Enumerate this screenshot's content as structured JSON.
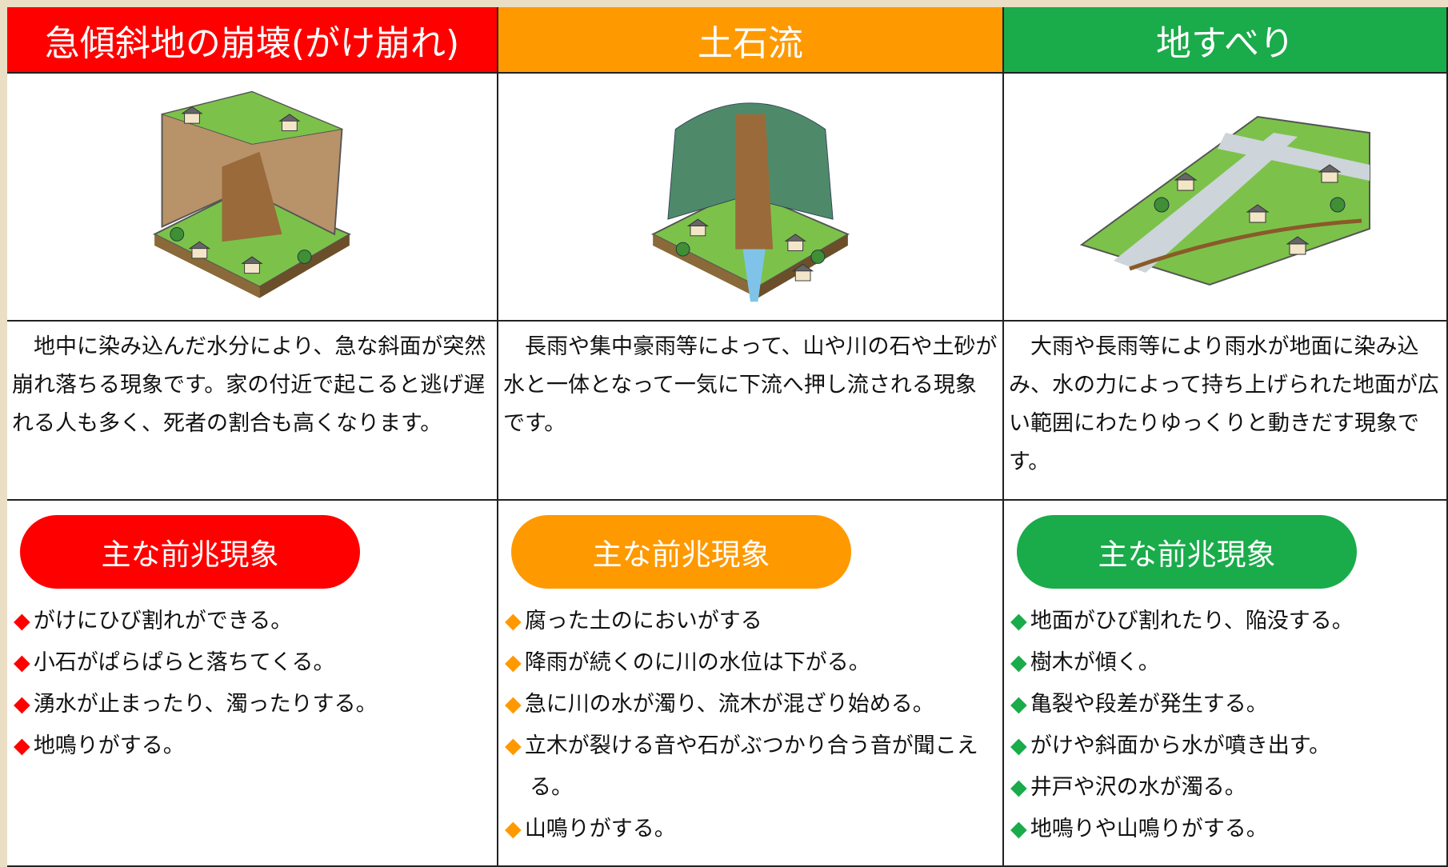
{
  "columns": [
    {
      "title": "急傾斜地の崩壊(がけ崩れ)",
      "description": "地中に染み込んだ水分により、急な斜面が突然崩れ落ちる現象です。家の付近で起こると逃げ遅れる人も多く、死者の割合も高くなります。",
      "precursor_heading": "主な前兆現象",
      "items": [
        "がけにひび割れができる。",
        "小石がぱらぱらと落ちてくる。",
        "湧水が止まったり、濁ったりする。",
        "地鳴りがする。"
      ]
    },
    {
      "title": "土石流",
      "description": "長雨や集中豪雨等によって、山や川の石や土砂が水と一体となって一気に下流へ押し流される現象です。",
      "precursor_heading": "主な前兆現象",
      "items": [
        "腐った土のにおいがする",
        "降雨が続くのに川の水位は下がる。",
        "急に川の水が濁り、流木が混ざり始める。",
        "立木が裂ける音や石がぶつかり合う音が聞こえる。",
        "山鳴りがする。"
      ]
    },
    {
      "title": "地すべり",
      "description": "大雨や長雨等により雨水が地面に染み込み、水の力によって持ち上げられた地面が広い範囲にわたりゆっくりと動きだす現象です。",
      "precursor_heading": "主な前兆現象",
      "items": [
        "地面がひび割れたり、陥没する。",
        "樹木が傾く。",
        "亀裂や段差が発生する。",
        "がけや斜面から水が噴き出す。",
        "井戸や沢の水が濁る。",
        "地鳴りや山鳴りがする。"
      ]
    }
  ]
}
